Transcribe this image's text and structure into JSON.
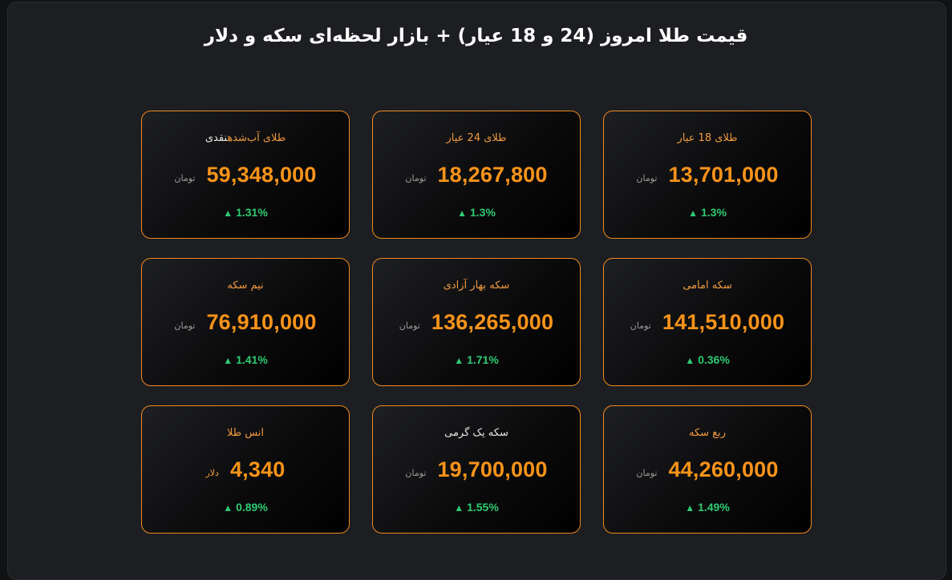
{
  "header": {
    "title": "قیمت طلا امروز (24 و 18 عیار) + بازار لحظه‌ای سکه و دلار"
  },
  "colors": {
    "accent": "#f7931a",
    "up": "#2ecc71",
    "background": "#1d1e22"
  },
  "cards": [
    {
      "title": "طلای 18 عیار",
      "price": "13,701,000",
      "unit": "تومان",
      "arrow": "▲",
      "change": "1.3%"
    },
    {
      "title": "طلای 24 عیار",
      "price": "18,267,800",
      "unit": "تومان",
      "arrow": "▲",
      "change": "1.3%"
    },
    {
      "title_accent": "طلای آب‌شده",
      "title_plain": "نقدی",
      "price": "59,348,000",
      "unit": "تومان",
      "arrow": "▲",
      "change": "1.31%"
    },
    {
      "title": "سکه امامی",
      "price": "141,510,000",
      "unit": "تومان",
      "arrow": "▲",
      "change": "0.36%"
    },
    {
      "title": "سکه بهار آزادی",
      "price": "136,265,000",
      "unit": "تومان",
      "arrow": "▲",
      "change": "1.71%"
    },
    {
      "title": "نیم سکه",
      "price": "76,910,000",
      "unit": "تومان",
      "arrow": "▲",
      "change": "1.41%"
    },
    {
      "title": "ربع سکه",
      "price": "44,260,000",
      "unit": "تومان",
      "arrow": "▲",
      "change": "1.49%"
    },
    {
      "title": "سکه یک گرمی",
      "price": "19,700,000",
      "unit": "تومان",
      "arrow": "▲",
      "change": "1.55%"
    },
    {
      "title": "انس طلا",
      "price": "4,340",
      "unit": "دلار",
      "arrow": "▲",
      "change": "0.89%"
    }
  ]
}
